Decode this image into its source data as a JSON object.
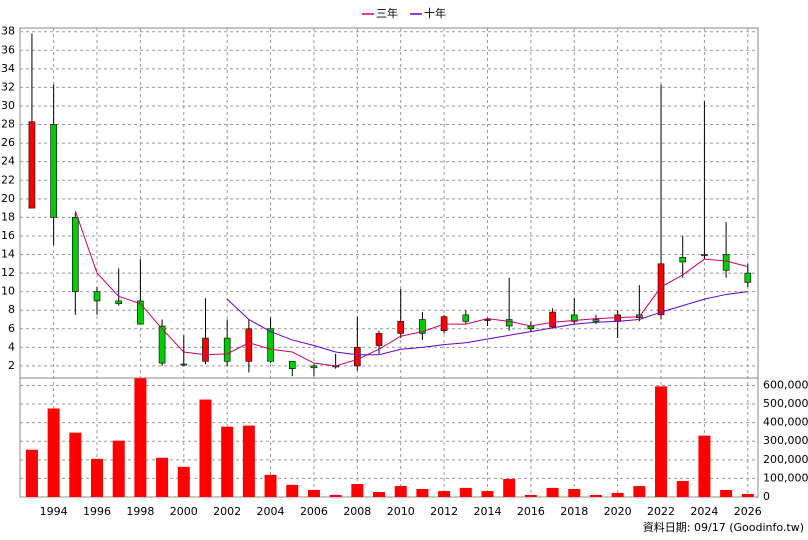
{
  "chart_data": {
    "type": "candlestick",
    "legend_position": "top",
    "x": [
      1993,
      1994,
      1995,
      1996,
      1997,
      1998,
      1999,
      2000,
      2001,
      2002,
      2003,
      2004,
      2005,
      2006,
      2007,
      2008,
      2009,
      2010,
      2011,
      2012,
      2013,
      2014,
      2015,
      2016,
      2017,
      2018,
      2019,
      2020,
      2021,
      2022,
      2023,
      2024,
      2025,
      2026
    ],
    "xlim": [
      1992.45,
      2026.47
    ],
    "xticks": [
      1994,
      1996,
      1998,
      2000,
      2002,
      2004,
      2006,
      2008,
      2010,
      2012,
      2014,
      2016,
      2018,
      2020,
      2022,
      2024,
      2026
    ],
    "open": [
      19,
      28,
      18,
      10,
      9,
      9,
      6.3,
      2.2,
      2.5,
      5,
      2.5,
      6,
      2.5,
      2,
      2,
      2,
      4.2,
      5.5,
      7,
      5.8,
      7.5,
      7,
      7,
      6.3,
      6.2,
      7.5,
      7,
      6.8,
      7.5,
      7.5,
      13.7,
      14,
      14,
      12
    ],
    "high": [
      37.8,
      32.3,
      18.5,
      10.5,
      12.5,
      13.5,
      7,
      5.3,
      9.3,
      7,
      7,
      7.2,
      2.5,
      2.2,
      3.3,
      7.3,
      5.8,
      10.3,
      7.8,
      7.5,
      8,
      7.2,
      11.5,
      6.8,
      8.2,
      9.3,
      7.5,
      8,
      10.7,
      32.3,
      16,
      30.5,
      17.5,
      13
    ],
    "low": [
      19,
      15,
      7.5,
      7.5,
      8.5,
      6.5,
      2,
      2,
      2.2,
      2,
      1.3,
      2.3,
      0.9,
      0.9,
      1.7,
      1.5,
      3.3,
      5,
      4.8,
      5.5,
      6.5,
      6.3,
      5.8,
      5.7,
      6,
      6.5,
      6.5,
      5,
      6.8,
      7,
      11.5,
      13.5,
      11.5,
      10.5
    ],
    "close": [
      28.3,
      18,
      10,
      9,
      8.7,
      6.5,
      2.3,
      2.1,
      5,
      2.5,
      6,
      2.5,
      1.7,
      1.8,
      1.9,
      4,
      5.5,
      6.8,
      5.5,
      7.3,
      6.8,
      7,
      6.3,
      6,
      7.8,
      6.8,
      6.8,
      7.5,
      7.2,
      13,
      13.2,
      14,
      12.3,
      11
    ],
    "up_color": "#ff0000",
    "down_color": "#00cc00",
    "ylim": [
      0.7,
      38.4
    ],
    "yticks": [
      2,
      4,
      6,
      8,
      10,
      12,
      14,
      16,
      18,
      20,
      22,
      24,
      26,
      28,
      30,
      32,
      34,
      36,
      38
    ],
    "grid": true,
    "series": [
      {
        "name": "三年",
        "color": "#cc0066",
        "values": [
          null,
          null,
          18.7,
          12,
          9.5,
          8.7,
          6,
          3.5,
          3.2,
          3.3,
          4.5,
          3.8,
          3.5,
          2.3,
          2,
          2.7,
          3.8,
          5.2,
          5.7,
          6.5,
          6.5,
          7.1,
          6.8,
          6.3,
          6.7,
          6.9,
          7.1,
          7.2,
          7.3,
          10.5,
          11.8,
          13.5,
          13.3,
          12.7
        ]
      },
      {
        "name": "十年",
        "color": "#6600cc",
        "values": [
          null,
          null,
          null,
          null,
          null,
          null,
          null,
          null,
          null,
          9.2,
          7,
          5.7,
          4.8,
          4.2,
          3.5,
          3.2,
          3.2,
          3.8,
          4,
          4.3,
          4.5,
          4.9,
          5.3,
          5.7,
          6.1,
          6.5,
          6.7,
          6.8,
          7,
          7.8,
          8.5,
          9.2,
          9.7,
          10
        ]
      }
    ],
    "volume": {
      "color": "#ff0000",
      "values": [
        254000,
        476000,
        346000,
        205000,
        303000,
        638000,
        211000,
        162000,
        524000,
        378000,
        384000,
        119000,
        65000,
        38000,
        11000,
        70000,
        27000,
        59000,
        43000,
        32000,
        49000,
        32000,
        97000,
        11000,
        49000,
        43000,
        11000,
        22000,
        59000,
        595000,
        86000,
        330000,
        38000,
        16000
      ],
      "ylim": [
        0,
        640000
      ],
      "yticks": [
        0,
        {
          "value": 100000,
          "label": "100,000"
        },
        {
          "value": 200000,
          "label": "200,000"
        },
        {
          "value": 300000,
          "label": "300,000"
        },
        {
          "value": 400000,
          "label": "400,000"
        },
        {
          "value": 500000,
          "label": "500,000"
        },
        {
          "value": 600000,
          "label": "600,000"
        }
      ]
    },
    "footer": "資料日期: 09/17  (Goodinfo.tw)"
  }
}
